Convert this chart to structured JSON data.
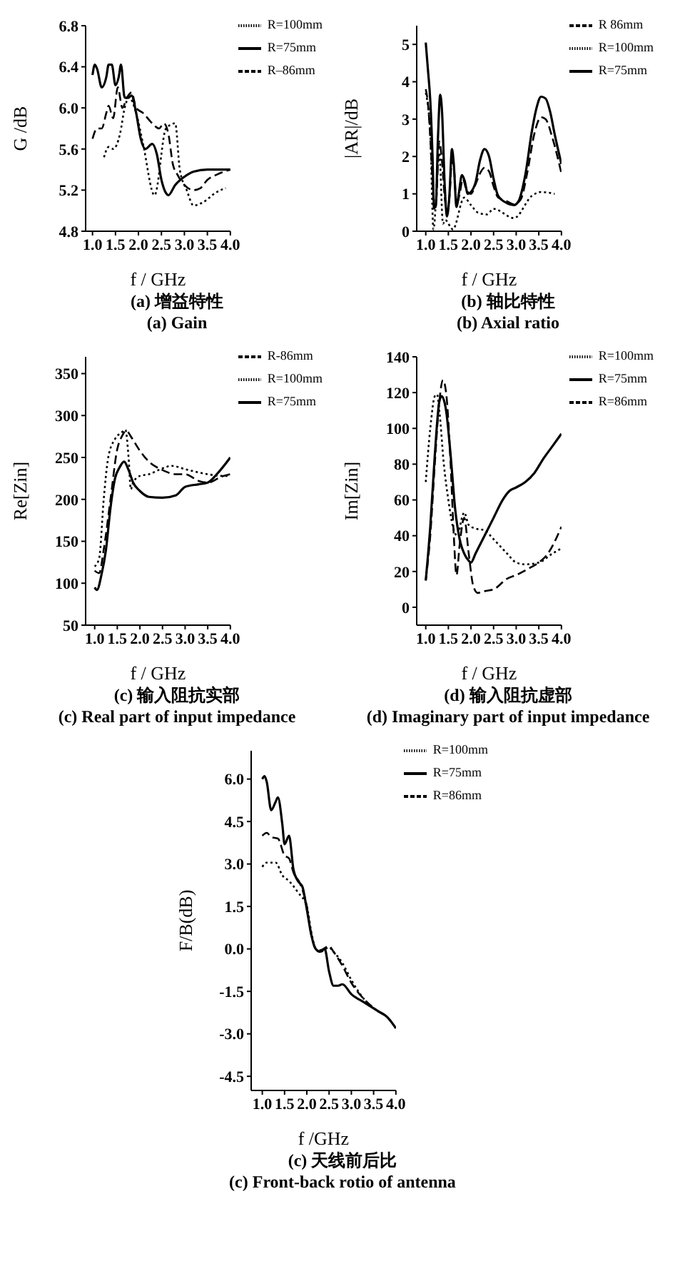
{
  "chart_data": [
    {
      "type": "line",
      "title": "(a) 增益特性",
      "subtitle": "(a) Gain",
      "xlabel": "f / GHz",
      "ylabel": "G /dB",
      "xlim": [
        0.85,
        4.0
      ],
      "ylim": [
        4.8,
        6.8
      ],
      "xticks": [
        {
          "value": 1,
          "label": "1.0"
        },
        1.5,
        {
          "value": 2,
          "label": "2.0"
        },
        2.5,
        {
          "value": 3,
          "label": "3.0"
        },
        3.5,
        {
          "value": 4,
          "label": "4.0"
        }
      ],
      "yticks": [
        4.8,
        5.2,
        5.6,
        {
          "value": 6,
          "label": "6.0"
        },
        6.4,
        6.8
      ],
      "legend": "top right",
      "marker": "none",
      "series": [
        {
          "name": "R=75mm",
          "color": "#000000",
          "line_style": "solid",
          "x": [
            1.0,
            1.05,
            1.1,
            1.2,
            1.3,
            1.35,
            1.42,
            1.5,
            1.57,
            1.62,
            1.7,
            1.78,
            1.85,
            1.95,
            2.05,
            2.15,
            2.3,
            2.4,
            2.5,
            2.6,
            2.65,
            2.8,
            3.0,
            3.2,
            3.5,
            4.0
          ],
          "values": [
            6.32,
            6.42,
            6.38,
            6.2,
            6.3,
            6.42,
            6.42,
            6.22,
            6.3,
            6.42,
            6.1,
            6.1,
            6.12,
            5.95,
            5.7,
            5.6,
            5.65,
            5.55,
            5.3,
            5.17,
            5.15,
            5.25,
            5.33,
            5.38,
            5.4,
            5.4
          ]
        },
        {
          "name": "R–86mm",
          "color": "#000000",
          "line_style": "dashed",
          "x": [
            1.0,
            1.1,
            1.2,
            1.3,
            1.35,
            1.45,
            1.55,
            1.65,
            1.75,
            1.85,
            1.95,
            2.1,
            2.3,
            2.45,
            2.55,
            2.65,
            2.75,
            2.85,
            3.0,
            3.2,
            3.35,
            3.5,
            3.7,
            4.0
          ],
          "values": [
            5.7,
            5.8,
            5.8,
            5.95,
            6.02,
            5.9,
            6.2,
            6.0,
            6.1,
            6.15,
            6.0,
            5.95,
            5.85,
            5.8,
            5.85,
            5.75,
            5.45,
            5.35,
            5.25,
            5.2,
            5.22,
            5.3,
            5.35,
            5.4
          ]
        },
        {
          "name": "R=100mm",
          "color": "#000000",
          "line_style": "dotted",
          "x": [
            1.25,
            1.35,
            1.45,
            1.6,
            1.7,
            1.8,
            1.95,
            2.1,
            2.35,
            2.6,
            2.8,
            2.9,
            3.05,
            3.2,
            3.4,
            3.7,
            3.9
          ],
          "values": [
            5.52,
            5.62,
            5.6,
            5.75,
            6.0,
            6.1,
            5.95,
            5.65,
            5.15,
            5.8,
            5.85,
            5.4,
            5.2,
            5.05,
            5.08,
            5.18,
            5.22
          ]
        }
      ]
    },
    {
      "type": "line",
      "title": "(b) 轴比特性",
      "subtitle": "(b) Axial ratio",
      "xlabel": "f / GHz",
      "ylabel": "|AR|/dB",
      "xlim": [
        0.8,
        4.0
      ],
      "ylim": [
        0,
        5.5
      ],
      "xticks": [
        {
          "value": 1,
          "label": "1.0"
        },
        1.5,
        {
          "value": 2,
          "label": "2.0"
        },
        2.5,
        {
          "value": 3,
          "label": "3.0"
        },
        3.5,
        {
          "value": 4,
          "label": "4.0"
        }
      ],
      "yticks": [
        0,
        1,
        2,
        3,
        4,
        5
      ],
      "legend": "top right",
      "marker": "none",
      "series": [
        {
          "name": "R=75mm",
          "color": "#000000",
          "line_style": "solid",
          "x": [
            1.0,
            1.05,
            1.1,
            1.15,
            1.18,
            1.22,
            1.27,
            1.32,
            1.36,
            1.42,
            1.47,
            1.52,
            1.58,
            1.62,
            1.68,
            1.73,
            1.8,
            1.86,
            1.93,
            2.0,
            2.1,
            2.2,
            2.3,
            2.4,
            2.5,
            2.6,
            2.8,
            2.95,
            3.05,
            3.2,
            3.35,
            3.45,
            3.55,
            3.65,
            3.75,
            3.85,
            4.0
          ],
          "values": [
            5.05,
            4.3,
            3.5,
            2.0,
            0.7,
            0.65,
            2.5,
            3.65,
            3.2,
            1.2,
            0.4,
            0.9,
            2.2,
            1.8,
            0.65,
            1.0,
            1.5,
            1.35,
            1.0,
            1.05,
            1.3,
            1.9,
            2.2,
            2.0,
            1.4,
            0.95,
            0.75,
            0.7,
            0.8,
            1.5,
            2.7,
            3.3,
            3.6,
            3.55,
            3.2,
            2.6,
            1.8
          ]
        },
        {
          "name": "R 86mm",
          "color": "#000000",
          "line_style": "dashed",
          "x": [
            1.0,
            1.05,
            1.1,
            1.15,
            1.18,
            1.23,
            1.3,
            1.35,
            1.42,
            1.47,
            1.53,
            1.58,
            1.63,
            1.68,
            1.75,
            1.82,
            1.9,
            2.0,
            2.1,
            2.2,
            2.3,
            2.4,
            2.5,
            2.6,
            2.8,
            2.95,
            3.1,
            3.25,
            3.4,
            3.55,
            3.65,
            3.8,
            4.0
          ],
          "values": [
            3.8,
            3.4,
            2.5,
            1.3,
            0.6,
            0.8,
            2.4,
            2.0,
            0.9,
            0.5,
            1.0,
            1.9,
            1.6,
            0.7,
            1.0,
            1.4,
            1.1,
            1.0,
            1.25,
            1.55,
            1.7,
            1.6,
            1.2,
            0.9,
            0.8,
            0.72,
            0.85,
            1.6,
            2.6,
            3.05,
            3.0,
            2.5,
            1.55
          ]
        },
        {
          "name": "R=100mm",
          "color": "#000000",
          "line_style": "dotted",
          "x": [
            1.0,
            1.1,
            1.17,
            1.3,
            1.38,
            1.43,
            1.6,
            1.85,
            2.0,
            2.15,
            2.35,
            2.5,
            2.95,
            3.35,
            3.55,
            3.85
          ],
          "values": [
            3.7,
            2.6,
            0.05,
            2.1,
            0.2,
            0.3,
            0.05,
            0.9,
            0.7,
            0.5,
            0.45,
            0.6,
            0.35,
            0.95,
            1.05,
            1.0
          ]
        }
      ]
    },
    {
      "type": "line",
      "title": "(c) 输入阻抗实部",
      "subtitle": "(c) Real part of input impedance",
      "xlabel": "f / GHz",
      "ylabel": "Re[Zin]",
      "xlim": [
        0.8,
        4.0
      ],
      "ylim": [
        50,
        370
      ],
      "xticks": [
        {
          "value": 1,
          "label": "1.0"
        },
        1.5,
        {
          "value": 2,
          "label": "2.0"
        },
        2.5,
        {
          "value": 3,
          "label": "3.0"
        },
        3.5,
        {
          "value": 4,
          "label": "4.0"
        }
      ],
      "yticks": [
        50,
        100,
        150,
        200,
        250,
        300,
        350
      ],
      "legend": "top right",
      "marker": "none",
      "series": [
        {
          "name": "R=75mm",
          "color": "#000000",
          "line_style": "solid",
          "x": [
            1.0,
            1.05,
            1.15,
            1.25,
            1.35,
            1.45,
            1.55,
            1.65,
            1.75,
            1.85,
            2.0,
            2.2,
            2.5,
            2.8,
            3.0,
            3.3,
            3.5,
            3.7,
            4.0
          ],
          "values": [
            95,
            92,
            110,
            140,
            190,
            225,
            238,
            245,
            235,
            220,
            210,
            203,
            202,
            205,
            215,
            218,
            220,
            230,
            250
          ]
        },
        {
          "name": "R-86mm",
          "color": "#000000",
          "line_style": "dashed",
          "x": [
            1.0,
            1.1,
            1.2,
            1.35,
            1.5,
            1.6,
            1.7,
            1.8,
            2.0,
            2.2,
            2.5,
            2.8,
            3.0,
            3.3,
            3.5,
            3.8,
            4.0
          ],
          "values": [
            115,
            112,
            140,
            200,
            260,
            275,
            282,
            275,
            258,
            245,
            235,
            230,
            230,
            222,
            220,
            227,
            230
          ]
        },
        {
          "name": "R=100mm",
          "color": "#000000",
          "line_style": "dotted",
          "x": [
            1.0,
            1.1,
            1.2,
            1.3,
            1.45,
            1.6,
            1.68,
            1.75,
            1.8,
            1.85,
            2.0,
            2.2,
            2.5,
            2.7,
            3.0,
            3.5,
            3.8,
            4.0
          ],
          "values": [
            120,
            130,
            200,
            250,
            272,
            280,
            283,
            250,
            212,
            220,
            228,
            230,
            237,
            240,
            236,
            230,
            228,
            228
          ]
        }
      ]
    },
    {
      "type": "line",
      "title": "(d) 输入阻抗虚部",
      "subtitle": "(d) Imaginary part of input impedance",
      "xlabel": "f / GHz",
      "ylabel": "Im[Zin]",
      "xlim": [
        0.8,
        4.0
      ],
      "ylim": [
        -10,
        140
      ],
      "xticks": [
        {
          "value": 1,
          "label": "1.0"
        },
        1.5,
        {
          "value": 2,
          "label": "2.0"
        },
        2.5,
        {
          "value": 3,
          "label": "3.0"
        },
        3.5,
        {
          "value": 4,
          "label": "4.0"
        }
      ],
      "yticks": [
        0,
        20,
        40,
        60,
        80,
        100,
        120,
        140
      ],
      "legend": "top right",
      "marker": "none",
      "series": [
        {
          "name": "R=75mm",
          "color": "#000000",
          "line_style": "solid",
          "x": [
            1.0,
            1.1,
            1.2,
            1.3,
            1.35,
            1.45,
            1.55,
            1.65,
            1.75,
            1.85,
            1.95,
            2.0,
            2.1,
            2.3,
            2.5,
            2.7,
            2.85,
            3.0,
            3.2,
            3.4,
            3.6,
            3.8,
            4.0
          ],
          "values": [
            15,
            45,
            85,
            115,
            118,
            110,
            85,
            55,
            38,
            30,
            26,
            25,
            30,
            40,
            50,
            60,
            65,
            67,
            70,
            75,
            83,
            90,
            97
          ]
        },
        {
          "name": "R=86mm",
          "color": "#000000",
          "line_style": "dashed",
          "x": [
            1.0,
            1.1,
            1.2,
            1.3,
            1.38,
            1.45,
            1.55,
            1.62,
            1.68,
            1.75,
            1.85,
            1.95,
            2.05,
            2.15,
            2.3,
            2.5,
            2.8,
            3.0,
            3.3,
            3.5,
            3.7,
            4.0
          ],
          "values": [
            15,
            40,
            80,
            115,
            127,
            120,
            80,
            40,
            18,
            35,
            50,
            30,
            12,
            8,
            9,
            10,
            16,
            18,
            22,
            25,
            30,
            45
          ]
        },
        {
          "name": "R=100mm",
          "color": "#000000",
          "line_style": "dotted",
          "x": [
            1.0,
            1.1,
            1.2,
            1.25,
            1.3,
            1.4,
            1.5,
            1.6,
            1.7,
            1.8,
            1.85,
            1.95,
            2.1,
            2.3,
            2.5,
            2.8,
            3.0,
            3.2,
            3.5,
            3.8,
            4.0
          ],
          "values": [
            70,
            100,
            118,
            119,
            110,
            80,
            60,
            45,
            40,
            50,
            53,
            46,
            44,
            43,
            38,
            30,
            25,
            24,
            25,
            30,
            33
          ]
        }
      ]
    },
    {
      "type": "line",
      "title": "(c) 天线前后比",
      "subtitle": "(c) Front-back rotio of antenna",
      "xlabel": "f /GHz",
      "ylabel": "F/B(dB)",
      "xlim": [
        0.75,
        4.0
      ],
      "ylim": [
        -5,
        7
      ],
      "xticks": [
        {
          "value": 1,
          "label": "1.0"
        },
        1.5,
        {
          "value": 2,
          "label": "2.0"
        },
        2.5,
        {
          "value": 3,
          "label": "3.0"
        },
        3.5,
        {
          "value": 4,
          "label": "4.0"
        }
      ],
      "yticks": [
        -4.5,
        {
          "value": -3,
          "label": "-3.0"
        },
        -1.5,
        {
          "value": 0,
          "label": "0.0"
        },
        1.5,
        {
          "value": 3,
          "label": "3.0"
        },
        4.5,
        {
          "value": 6,
          "label": "6.0"
        }
      ],
      "legend": "top right",
      "marker": "none",
      "series": [
        {
          "name": "R=75mm",
          "color": "#000000",
          "line_style": "solid",
          "x": [
            1.0,
            1.05,
            1.1,
            1.2,
            1.3,
            1.35,
            1.45,
            1.5,
            1.6,
            1.7,
            1.8,
            1.9,
            2.0,
            2.1,
            2.2,
            2.3,
            2.4,
            2.5,
            2.6,
            2.7,
            2.8,
            3.0,
            3.3,
            3.6,
            3.8,
            4.0
          ],
          "values": [
            6.0,
            6.1,
            5.9,
            4.9,
            5.2,
            5.35,
            4.4,
            3.7,
            4.0,
            2.8,
            2.4,
            2.2,
            1.4,
            0.5,
            0.0,
            -0.1,
            0.0,
            -0.8,
            -1.3,
            -1.3,
            -1.25,
            -1.6,
            -1.9,
            -2.2,
            -2.4,
            -2.8
          ]
        },
        {
          "name": "R=86mm",
          "color": "#000000",
          "line_style": "dashed",
          "x": [
            1.0,
            1.1,
            1.2,
            1.35,
            1.5,
            1.6,
            1.7,
            1.85,
            2.0,
            2.1,
            2.2,
            2.3,
            2.5,
            2.6,
            2.8,
            3.0,
            3.3,
            3.6,
            3.8,
            4.0
          ],
          "values": [
            4.0,
            4.1,
            3.95,
            3.9,
            3.3,
            3.2,
            2.7,
            2.3,
            1.5,
            0.5,
            0.0,
            -0.05,
            0.1,
            -0.1,
            -0.6,
            -1.2,
            -1.8,
            -2.2,
            -2.4,
            -2.8
          ]
        },
        {
          "name": "R=100mm",
          "color": "#000000",
          "line_style": "dotted",
          "x": [
            1.0,
            1.1,
            1.3,
            1.45,
            1.6,
            1.8,
            2.0,
            2.1,
            2.2,
            2.3,
            2.5,
            2.6,
            2.8,
            3.0,
            3.3,
            3.6,
            3.8,
            4.0
          ],
          "values": [
            2.9,
            3.05,
            3.05,
            2.6,
            2.4,
            2.0,
            1.5,
            0.6,
            0.0,
            -0.1,
            0.05,
            -0.1,
            -0.5,
            -1.1,
            -1.8,
            -2.2,
            -2.4,
            -2.8
          ]
        }
      ]
    }
  ]
}
